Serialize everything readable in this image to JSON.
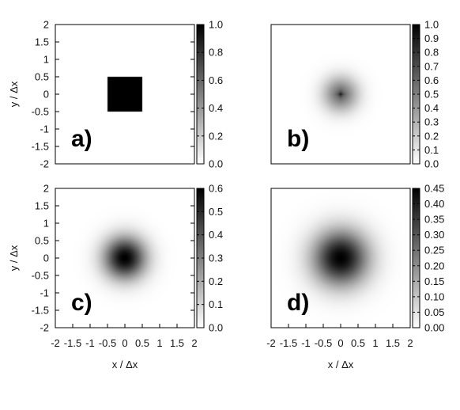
{
  "chart_data": [
    {
      "type": "heatmap",
      "panel_label": "a)",
      "shape": "square",
      "peak": 1.0,
      "extent": [
        -0.5,
        0.5
      ],
      "ylabel": "y / Δx",
      "xlabel": "",
      "xlim": [
        -2,
        2
      ],
      "ylim": [
        -2,
        2
      ],
      "yticks": [
        "-2",
        "-1.5",
        "-1",
        "-0.5",
        "0",
        "0.5",
        "1",
        "1.5",
        "2"
      ],
      "xticks": [],
      "colorbar": {
        "range": [
          0,
          1.0
        ],
        "ticks": [
          "0.0",
          "0.2",
          "0.4",
          "0.6",
          "0.8",
          "1.0"
        ]
      },
      "colormap": [
        "#ffffff",
        "#000000"
      ]
    },
    {
      "type": "heatmap",
      "panel_label": "b)",
      "shape": "star",
      "peak": 1.0,
      "spread": 0.35,
      "ylabel": "",
      "xlabel": "",
      "xlim": [
        -2,
        2
      ],
      "ylim": [
        -2,
        2
      ],
      "yticks": [],
      "xticks": [],
      "colorbar": {
        "range": [
          0,
          1.0
        ],
        "ticks": [
          "0.0",
          "0.1",
          "0.2",
          "0.3",
          "0.4",
          "0.5",
          "0.6",
          "0.7",
          "0.8",
          "0.9",
          "1.0"
        ]
      },
      "colormap": [
        "#ffffff",
        "#000000"
      ]
    },
    {
      "type": "heatmap",
      "panel_label": "c)",
      "shape": "gaussian",
      "peak": 0.6,
      "spread": 0.42,
      "ylabel": "y / Δx",
      "xlabel": "x / Δx",
      "xlim": [
        -2,
        2
      ],
      "ylim": [
        -2,
        2
      ],
      "yticks": [
        "-2",
        "-1.5",
        "-1",
        "-0.5",
        "0",
        "0.5",
        "1",
        "1.5",
        "2"
      ],
      "xticks": [
        "-2",
        "-1.5",
        "-1",
        "-0.5",
        "0",
        "0.5",
        "1",
        "1.5",
        "2"
      ],
      "colorbar": {
        "range": [
          0,
          0.6
        ],
        "ticks": [
          "0.0",
          "0.1",
          "0.2",
          "0.3",
          "0.4",
          "0.5",
          "0.6"
        ]
      },
      "colormap": [
        "#ffffff",
        "#000000"
      ]
    },
    {
      "type": "heatmap",
      "panel_label": "d)",
      "shape": "gaussian",
      "peak": 0.45,
      "spread": 0.55,
      "ylabel": "",
      "xlabel": "x / Δx",
      "xlim": [
        -2,
        2
      ],
      "ylim": [
        -2,
        2
      ],
      "yticks": [],
      "xticks": [
        "-2",
        "-1.5",
        "-1",
        "-0.5",
        "0",
        "0.5",
        "1",
        "1.5",
        "2"
      ],
      "colorbar": {
        "range": [
          0,
          0.45
        ],
        "ticks": [
          "0.00",
          "0.05",
          "0.10",
          "0.15",
          "0.20",
          "0.25",
          "0.30",
          "0.35",
          "0.40",
          "0.45"
        ]
      },
      "colormap": [
        "#ffffff",
        "#000000"
      ]
    }
  ]
}
